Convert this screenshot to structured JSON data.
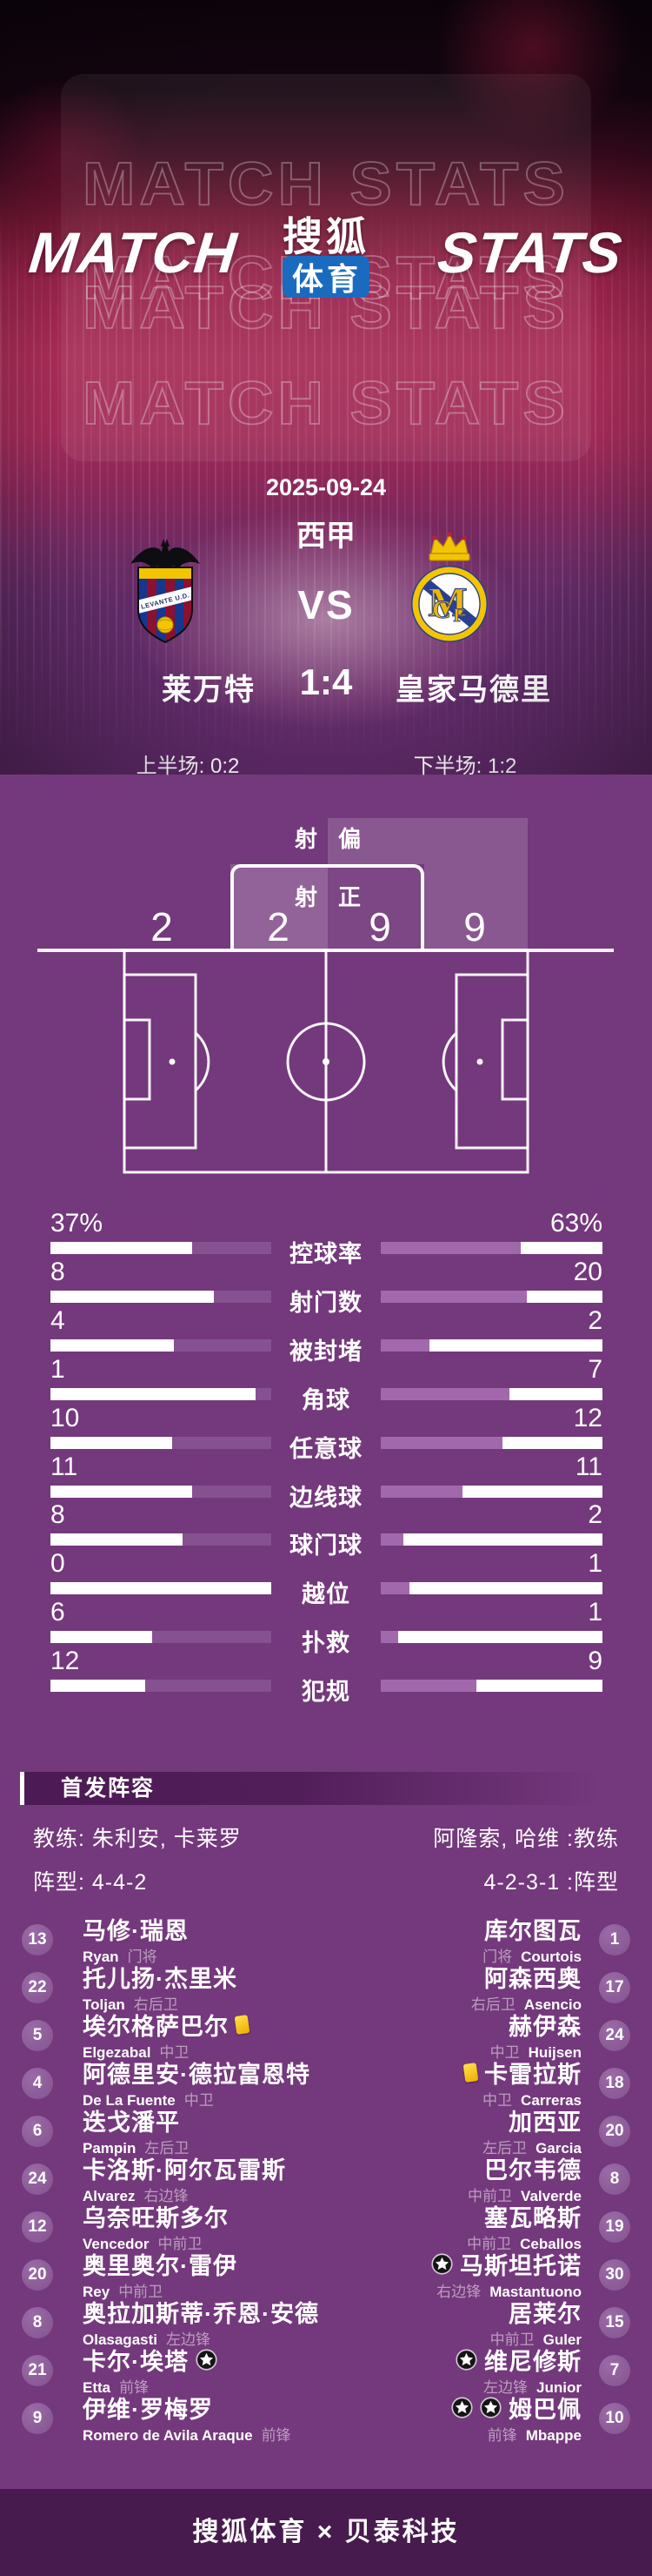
{
  "header": {
    "watermark": "MATCH STATS",
    "title_left": "MATCH",
    "title_right": "STATS",
    "logo_top": "搜狐",
    "logo_bottom": "体育"
  },
  "match": {
    "date": "2025-09-24",
    "league": "西甲",
    "vs": "VS",
    "home_team": "莱万特",
    "away_team": "皇家马德里",
    "score": "1:4",
    "first_half": "上半场: 0:2",
    "second_half": "下半场: 1:2"
  },
  "shots": {
    "off_target_label": [
      "射",
      "偏"
    ],
    "on_target_label": [
      "射",
      "正"
    ],
    "home_off": "2",
    "home_on": "2",
    "away_on": "9",
    "away_off": "9"
  },
  "stats": {
    "rows": [
      {
        "label": "控球率",
        "home": "37%",
        "away": "63%",
        "home_fill": 36,
        "away_fill": 63
      },
      {
        "label": "射门数",
        "home": "8",
        "away": "20",
        "home_fill": 26,
        "away_fill": 66
      },
      {
        "label": "被封堵",
        "home": "4",
        "away": "2",
        "home_fill": 44,
        "away_fill": 22
      },
      {
        "label": "角球",
        "home": "1",
        "away": "7",
        "home_fill": 7,
        "away_fill": 58
      },
      {
        "label": "任意球",
        "home": "10",
        "away": "12",
        "home_fill": 45,
        "away_fill": 55
      },
      {
        "label": "边线球",
        "home": "11",
        "away": "11",
        "home_fill": 36,
        "away_fill": 37
      },
      {
        "label": "球门球",
        "home": "8",
        "away": "2",
        "home_fill": 40,
        "away_fill": 10
      },
      {
        "label": "越位",
        "home": "0",
        "away": "1",
        "home_fill": 0,
        "away_fill": 13
      },
      {
        "label": "扑救",
        "home": "6",
        "away": "1",
        "home_fill": 54,
        "away_fill": 8
      },
      {
        "label": "犯规",
        "home": "12",
        "away": "9",
        "home_fill": 57,
        "away_fill": 43
      }
    ]
  },
  "lineup": {
    "section_title": "首发阵容",
    "coach_home": "教练: 朱利安, 卡莱罗",
    "coach_away": "阿隆索, 哈维 :教练",
    "formation_home": "阵型: 4-4-2",
    "formation_away": "4-2-3-1 :阵型",
    "home_players": [
      {
        "num": "13",
        "name": "马修·瑞恩",
        "en": "Ryan",
        "pos": "门将"
      },
      {
        "num": "22",
        "name": "托儿扬·杰里米",
        "en": "Toljan",
        "pos": "右后卫"
      },
      {
        "num": "5",
        "name": "埃尔格萨巴尔",
        "en": "Elgezabal",
        "pos": "中卫",
        "yellow": true
      },
      {
        "num": "4",
        "name": "阿德里安·德拉富恩特",
        "en": "De La Fuente",
        "pos": "中卫"
      },
      {
        "num": "6",
        "name": "迭戈潘平",
        "en": "Pampin",
        "pos": "左后卫"
      },
      {
        "num": "24",
        "name": "卡洛斯·阿尔瓦雷斯",
        "en": "Alvarez",
        "pos": "右边锋"
      },
      {
        "num": "12",
        "name": "乌奈旺斯多尔",
        "en": "Vencedor",
        "pos": "中前卫"
      },
      {
        "num": "20",
        "name": "奥里奥尔·雷伊",
        "en": "Rey",
        "pos": "中前卫"
      },
      {
        "num": "8",
        "name": "奥拉加斯蒂·乔恩·安德",
        "en": "Olasagasti",
        "pos": "左边锋"
      },
      {
        "num": "21",
        "name": "卡尔·埃塔",
        "en": "Etta",
        "pos": "前锋",
        "goals": 1
      },
      {
        "num": "9",
        "name": "伊维·罗梅罗",
        "en": "Romero de Avila Araque",
        "pos": "前锋"
      }
    ],
    "away_players": [
      {
        "num": "1",
        "name": "库尔图瓦",
        "en": "Courtois",
        "pos": "门将"
      },
      {
        "num": "17",
        "name": "阿森西奥",
        "en": "Asencio",
        "pos": "右后卫"
      },
      {
        "num": "24",
        "name": "赫伊森",
        "en": "Huijsen",
        "pos": "中卫"
      },
      {
        "num": "18",
        "name": "卡雷拉斯",
        "en": "Carreras",
        "pos": "中卫",
        "yellow": true
      },
      {
        "num": "20",
        "name": "加西亚",
        "en": "Garcia",
        "pos": "左后卫"
      },
      {
        "num": "8",
        "name": "巴尔韦德",
        "en": "Valverde",
        "pos": "中前卫"
      },
      {
        "num": "19",
        "name": "塞瓦略斯",
        "en": "Ceballos",
        "pos": "中前卫"
      },
      {
        "num": "30",
        "name": "马斯坦托诺",
        "en": "Mastantuono",
        "pos": "右边锋",
        "goals": 1
      },
      {
        "num": "15",
        "name": "居莱尔",
        "en": "Guler",
        "pos": "中前卫"
      },
      {
        "num": "7",
        "name": "维尼修斯",
        "en": "Junior",
        "pos": "左边锋",
        "goals": 1
      },
      {
        "num": "10",
        "name": "姆巴佩",
        "en": "Mbappe",
        "pos": "前锋",
        "goals": 2
      }
    ]
  },
  "footer": {
    "text": "搜狐体育 × 贝泰科技"
  },
  "icons": {
    "yellow_card": "yellow-card-icon",
    "goal": "soccer-ball-icon"
  },
  "colors": {
    "bg_main": "#74387c",
    "bg_dark_section": "#5c2966",
    "bg_footer": "#471b4e",
    "bar_home_fill": "#865190",
    "bar_away_fill": "#a169ab",
    "bar_empty": "#ffffff",
    "logo_blue": "#1a6bbf",
    "hero_red": "#a62b55"
  }
}
